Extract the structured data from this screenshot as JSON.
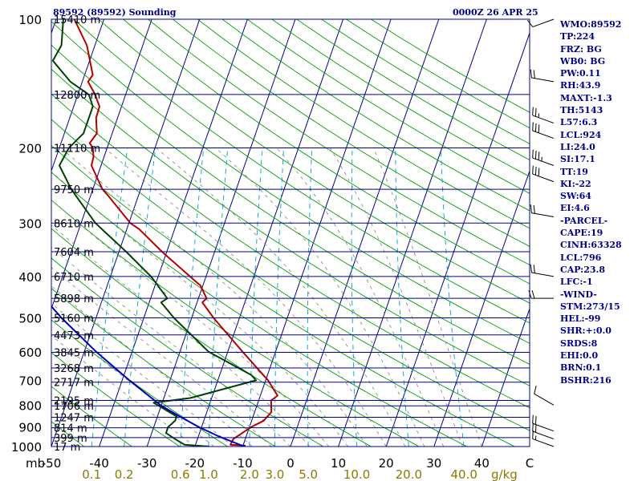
{
  "header": {
    "station": "89592 (89592) Sounding",
    "time": "0000Z 26 APR 25"
  },
  "stats": [
    {
      "key": "WMO",
      "sep": ":",
      "val": "89592"
    },
    {
      "key": "TP",
      "sep": ":",
      "val": "224"
    },
    {
      "key": "FRZ",
      "sep": ": ",
      "val": "BG"
    },
    {
      "key": "WB0",
      "sep": ": ",
      "val": "BG"
    },
    {
      "key": "PW",
      "sep": ":",
      "val": "0.11"
    },
    {
      "key": "RH",
      "sep": ":",
      "val": "43.9"
    },
    {
      "key": "MAXT",
      "sep": ":",
      "val": "-1.3"
    },
    {
      "key": "TH",
      "sep": ":",
      "val": "5143"
    },
    {
      "key": "L57",
      "sep": ":",
      "val": "6.3"
    },
    {
      "key": "LCL",
      "sep": ":",
      "val": "924"
    },
    {
      "key": "LI",
      "sep": ":",
      "val": "24.0"
    },
    {
      "key": "SI",
      "sep": ":",
      "val": "17.1"
    },
    {
      "key": "TT",
      "sep": ":",
      "val": "19"
    },
    {
      "key": "KI",
      "sep": ":",
      "val": "-22"
    },
    {
      "key": "SW",
      "sep": ":",
      "val": "64"
    },
    {
      "key": "EI",
      "sep": ":",
      "val": "4.6"
    },
    {
      "key": "-PARCEL-",
      "sep": "",
      "val": ""
    },
    {
      "key": "CAPE",
      "sep": ":",
      "val": "19"
    },
    {
      "key": "CINH",
      "sep": ":",
      "val": "63328"
    },
    {
      "key": "LCL",
      "sep": ":",
      "val": "796"
    },
    {
      "key": "CAP",
      "sep": ":",
      "val": "23.8"
    },
    {
      "key": "LFC",
      "sep": ":",
      "val": "-1"
    },
    {
      "key": "-WIND-",
      "sep": "",
      "val": ""
    },
    {
      "key": "STM",
      "sep": ":",
      "val": "273/15"
    },
    {
      "key": "HEL",
      "sep": ":",
      "val": "-99"
    },
    {
      "key": "SHR",
      "sep": ":",
      "val": "+:0.0"
    },
    {
      "key": "SRDS",
      "sep": ":",
      "val": "8"
    },
    {
      "key": "EHI",
      "sep": ":",
      "val": "0.0"
    },
    {
      "key": "BRN",
      "sep": ":",
      "val": "0.1"
    },
    {
      "key": "BSHR",
      "sep": ":",
      "val": "216"
    }
  ],
  "colors": {
    "frame": "#00008b",
    "isobar": "#00008b",
    "isotherm": "#00008b",
    "dry_adiabat": "#00a000",
    "moist_adiabat": "#808080",
    "mixing_ratio": "#00a0c8",
    "temperature": "#b40000",
    "dewpoint": "#004000",
    "parcel": "#0000c0",
    "wind": "#000000",
    "tick_text": "#000000",
    "mixing_text": "#8b7a00"
  },
  "chart_data": {
    "type": "skew-t",
    "pressure_axis": {
      "unit": "mb",
      "range": [
        1000,
        100
      ],
      "scale": "log",
      "ticks": [
        100,
        200,
        300,
        400,
        500,
        600,
        700,
        800,
        900,
        1000
      ],
      "unit_label": "mb"
    },
    "temperature_axis": {
      "range": [
        -50,
        50
      ],
      "ticks": [
        -50,
        -40,
        -30,
        -20,
        -10,
        0,
        10,
        20,
        30,
        40
      ],
      "tick_labels": [
        "-50",
        "-40",
        "-30",
        "-20",
        "-10",
        "0",
        "10",
        "20",
        "30",
        "40"
      ],
      "last_tick_label": "C",
      "skew_degrees_per_decade": 31
    },
    "height_labels": [
      {
        "p": 1000,
        "label": "17 m"
      },
      {
        "p": 953,
        "label": "399 m"
      },
      {
        "p": 904,
        "label": "814 m"
      },
      {
        "p": 854,
        "label": "1247 m"
      },
      {
        "p": 803,
        "label": "1706 m"
      },
      {
        "p": 780,
        "label": "2195 m"
      },
      {
        "p": 707,
        "label": "2717 m"
      },
      {
        "p": 655,
        "label": "3268 m"
      },
      {
        "p": 602,
        "label": "3845 m"
      },
      {
        "p": 548,
        "label": "4473 m"
      },
      {
        "p": 500,
        "label": "5160 m"
      },
      {
        "p": 450,
        "label": "5898 m"
      },
      {
        "p": 400,
        "label": "6710 m"
      },
      {
        "p": 350,
        "label": "7604 m"
      },
      {
        "p": 300,
        "label": "8610 m"
      },
      {
        "p": 250,
        "label": "9750 m"
      },
      {
        "p": 200,
        "label": "11110 m"
      },
      {
        "p": 150,
        "label": "12800 m"
      },
      {
        "p": 100,
        "label": "15410 m"
      }
    ],
    "mixing_ratio_lines": [
      0.1,
      0.2,
      0.6,
      1.0,
      2.0,
      3.0,
      5.0,
      10.0,
      20.0,
      40.0
    ],
    "mixing_ratio_labels": [
      "0.1",
      "0.2",
      "0.6",
      "1.0",
      "2.0",
      "3.0",
      "5.0",
      "10.0",
      "20.0",
      "40.0"
    ],
    "mixing_ratio_unit": "g/kg",
    "series": [
      {
        "key": "temperature",
        "points": [
          {
            "p": 1000,
            "t": -9.6
          },
          {
            "p": 995,
            "t": -9.6
          },
          {
            "p": 990,
            "t": -12.7
          },
          {
            "p": 960,
            "t": -12.5
          },
          {
            "p": 900,
            "t": -9.6
          },
          {
            "p": 870,
            "t": -7.5
          },
          {
            "p": 830,
            "t": -6.5
          },
          {
            "p": 780,
            "t": -7.4
          },
          {
            "p": 760,
            "t": -6.4
          },
          {
            "p": 700,
            "t": -9.5
          },
          {
            "p": 600,
            "t": -16.9
          },
          {
            "p": 500,
            "t": -25.4
          },
          {
            "p": 460,
            "t": -28.9
          },
          {
            "p": 450,
            "t": -28.3
          },
          {
            "p": 420,
            "t": -30.5
          },
          {
            "p": 380,
            "t": -36.3
          },
          {
            "p": 350,
            "t": -41.0
          },
          {
            "p": 310,
            "t": -47.4
          },
          {
            "p": 300,
            "t": -49.7
          },
          {
            "p": 260,
            "t": -56.1
          },
          {
            "p": 250,
            "t": -58.0
          },
          {
            "p": 220,
            "t": -62.0
          },
          {
            "p": 210,
            "t": -62.2
          },
          {
            "p": 200,
            "t": -63.0
          },
          {
            "p": 195,
            "t": -64.0
          },
          {
            "p": 185,
            "t": -63.2
          },
          {
            "p": 170,
            "t": -64.5
          },
          {
            "p": 160,
            "t": -64.6
          },
          {
            "p": 150,
            "t": -66.4
          },
          {
            "p": 140,
            "t": -68.8
          },
          {
            "p": 135,
            "t": -68.3
          },
          {
            "p": 120,
            "t": -70.8
          },
          {
            "p": 115,
            "t": -71.7
          },
          {
            "p": 100,
            "t": -76.2
          }
        ]
      },
      {
        "key": "dewpoint",
        "points": [
          {
            "p": 1000,
            "t": -17.0
          },
          {
            "p": 990,
            "t": -22.3
          },
          {
            "p": 960,
            "t": -24.7
          },
          {
            "p": 930,
            "t": -27.0
          },
          {
            "p": 900,
            "t": -27.0
          },
          {
            "p": 870,
            "t": -26.0
          },
          {
            "p": 850,
            "t": -26.0
          },
          {
            "p": 800,
            "t": -30.8
          },
          {
            "p": 790,
            "t": -31.8
          },
          {
            "p": 770,
            "t": -24.5
          },
          {
            "p": 700,
            "t": -12.0
          },
          {
            "p": 680,
            "t": -13.4
          },
          {
            "p": 600,
            "t": -24.0
          },
          {
            "p": 500,
            "t": -33.7
          },
          {
            "p": 460,
            "t": -37.5
          },
          {
            "p": 450,
            "t": -36.5
          },
          {
            "p": 400,
            "t": -41.5
          },
          {
            "p": 350,
            "t": -48.5
          },
          {
            "p": 300,
            "t": -57.0
          },
          {
            "p": 250,
            "t": -64.5
          },
          {
            "p": 220,
            "t": -68.7
          },
          {
            "p": 200,
            "t": -68.0
          },
          {
            "p": 185,
            "t": -66.0
          },
          {
            "p": 160,
            "t": -66.0
          },
          {
            "p": 150,
            "t": -67.7
          },
          {
            "p": 140,
            "t": -72.5
          },
          {
            "p": 125,
            "t": -77.7
          },
          {
            "p": 115,
            "t": -77.0
          },
          {
            "p": 100,
            "t": -78.5
          }
        ]
      },
      {
        "key": "parcel",
        "points": [
          {
            "p": 1000,
            "t": -9.6
          },
          {
            "p": 950,
            "t": -15.4
          },
          {
            "p": 900,
            "t": -20.6
          },
          {
            "p": 850,
            "t": -25.4
          },
          {
            "p": 800,
            "t": -30.2
          },
          {
            "p": 700,
            "t": -38.5
          },
          {
            "p": 600,
            "t": -47.5
          },
          {
            "p": 500,
            "t": -57.2
          },
          {
            "p": 400,
            "t": -67.8
          },
          {
            "p": 300,
            "t": -80.0
          },
          {
            "p": 250,
            "t": -87.5
          },
          {
            "p": 200,
            "t": -95.0
          },
          {
            "p": 150,
            "t": -105.0
          },
          {
            "p": 130,
            "t": -110.0
          }
        ]
      }
    ],
    "wind_barbs": [
      {
        "p": 1000,
        "dir": 290,
        "speed_kt": 15
      },
      {
        "p": 960,
        "dir": 290,
        "speed_kt": 20
      },
      {
        "p": 920,
        "dir": 290,
        "speed_kt": 20
      },
      {
        "p": 800,
        "dir": 300,
        "speed_kt": 10
      },
      {
        "p": 450,
        "dir": 270,
        "speed_kt": 20
      },
      {
        "p": 400,
        "dir": 280,
        "speed_kt": 20
      },
      {
        "p": 290,
        "dir": 280,
        "speed_kt": 20
      },
      {
        "p": 240,
        "dir": 290,
        "speed_kt": 30
      },
      {
        "p": 220,
        "dir": 290,
        "speed_kt": 35
      },
      {
        "p": 190,
        "dir": 290,
        "speed_kt": 30
      },
      {
        "p": 175,
        "dir": 290,
        "speed_kt": 25
      },
      {
        "p": 140,
        "dir": 280,
        "speed_kt": 20
      },
      {
        "p": 100,
        "dir": 250,
        "speed_kt": 10
      }
    ]
  }
}
